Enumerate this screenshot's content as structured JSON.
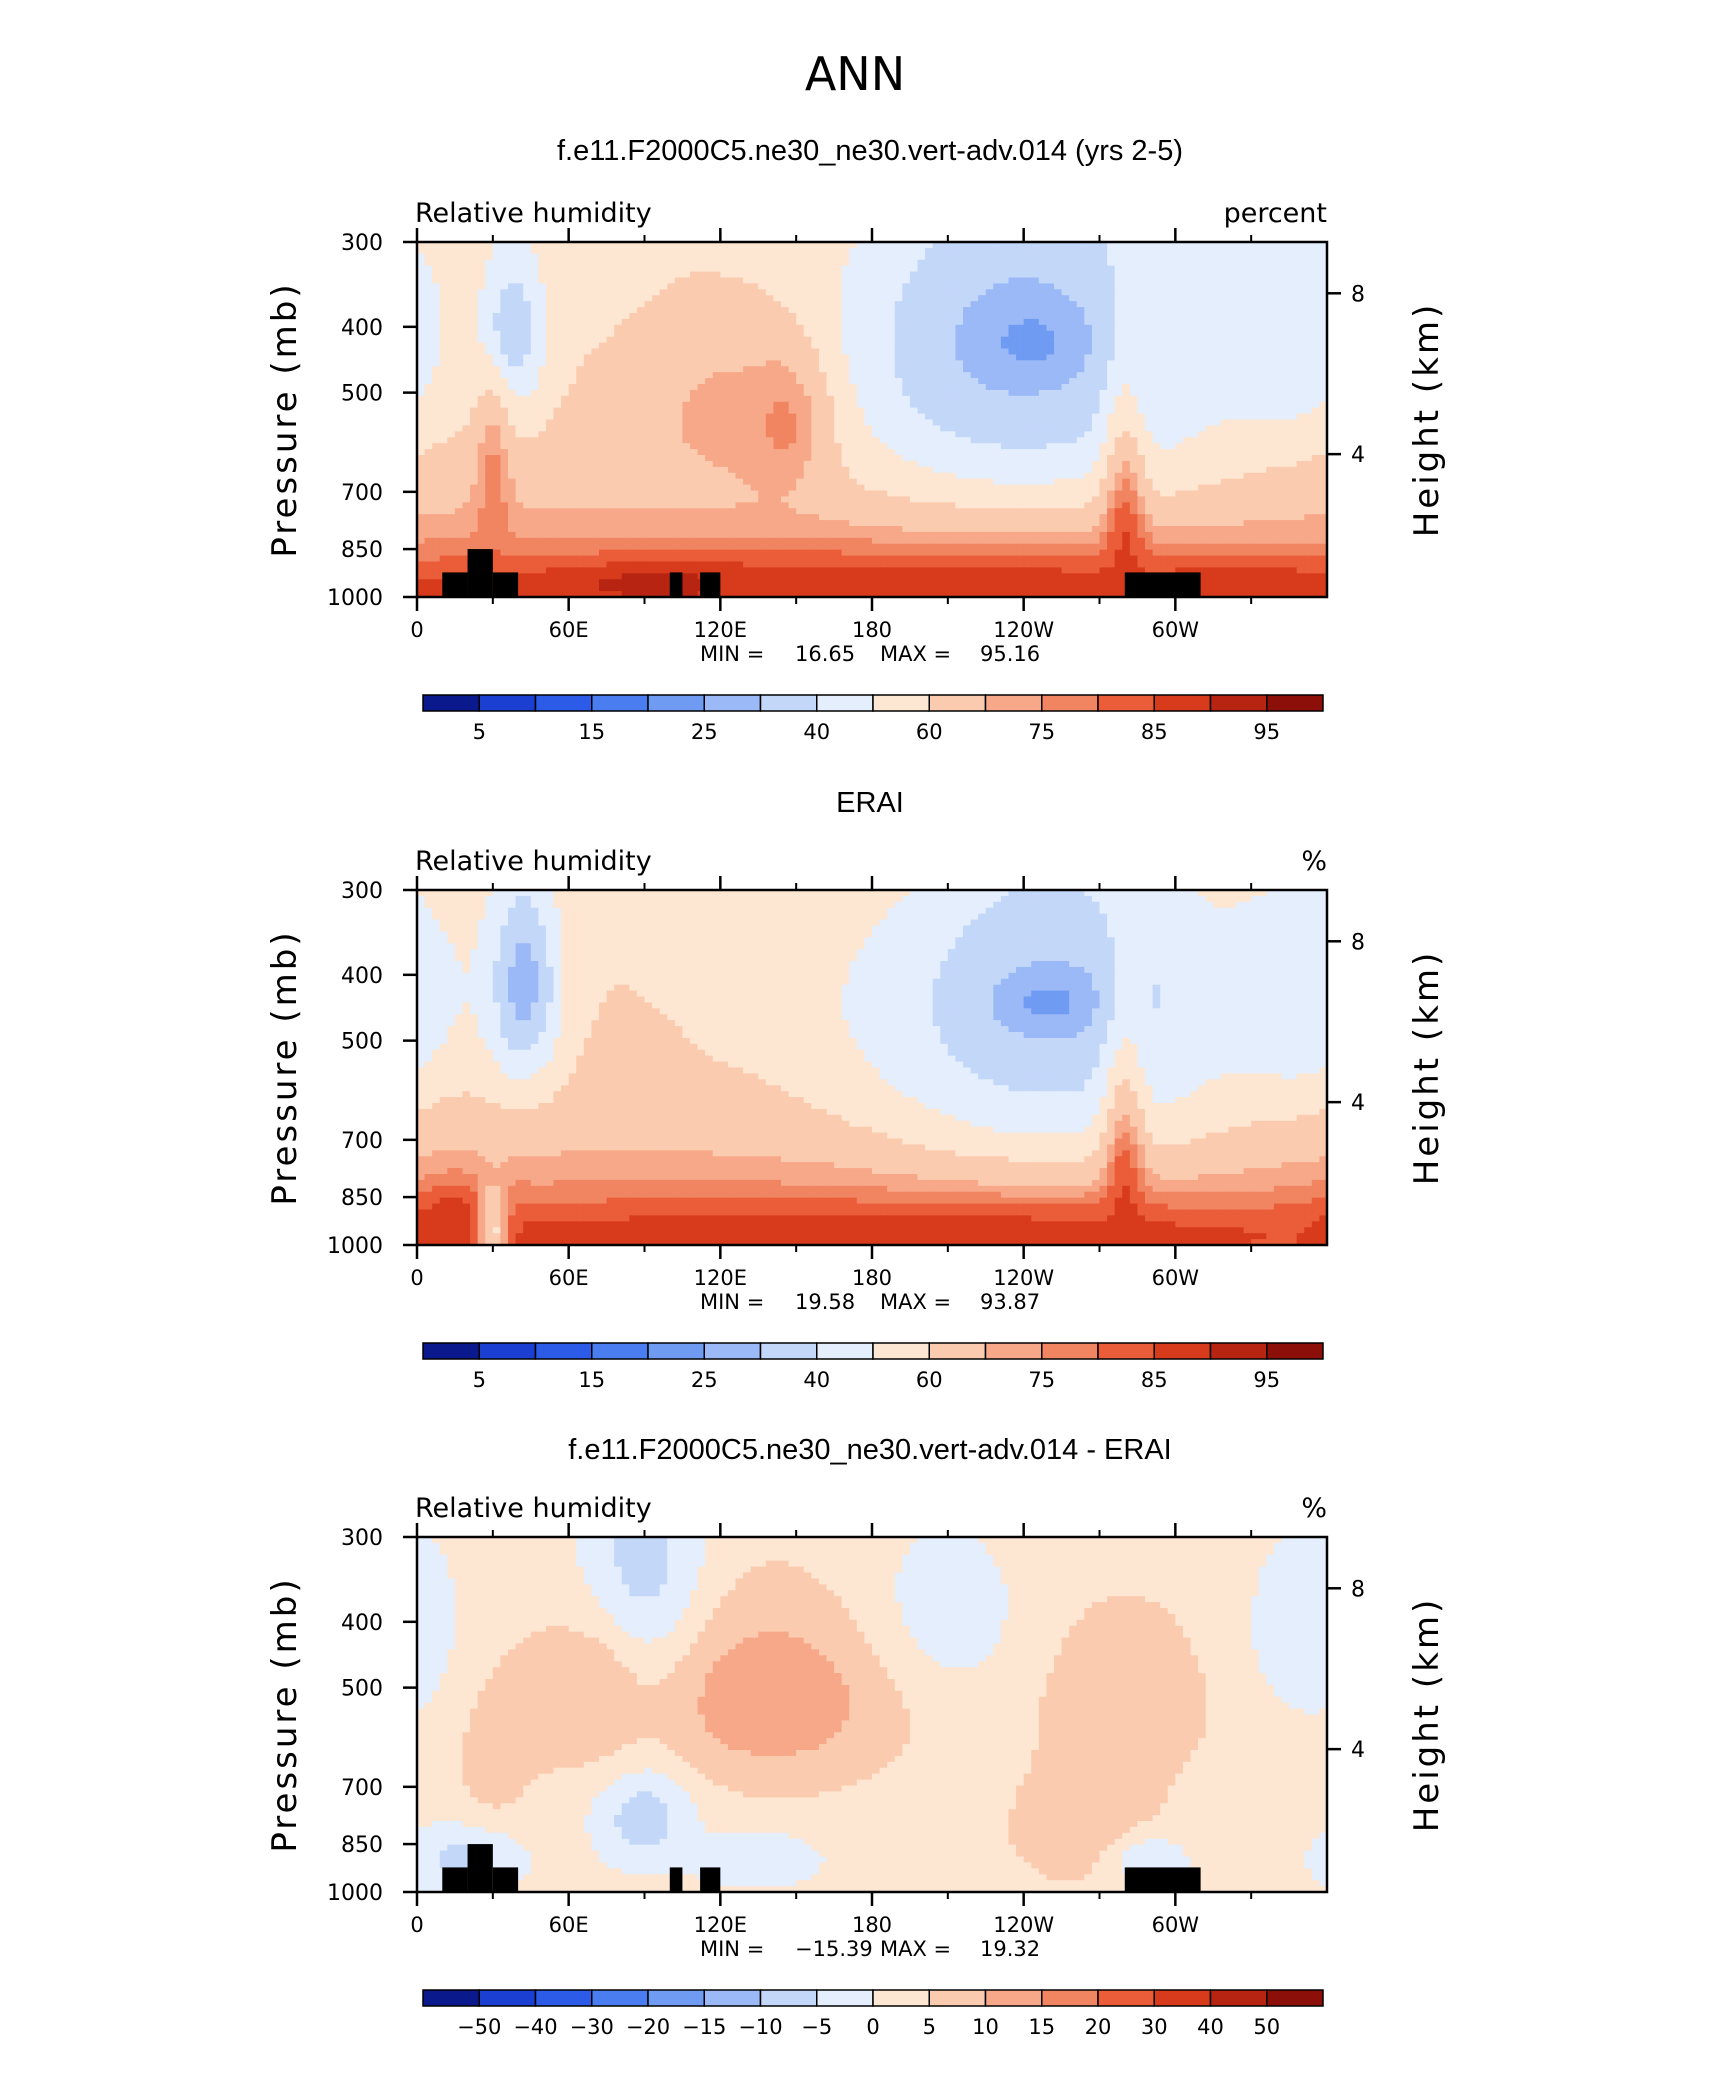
{
  "page_title": "ANN",
  "colors": {
    "frame": "#000000",
    "land_mask": "#000000"
  },
  "chart_data": [
    {
      "type": "heatmap",
      "title": "f.e11.F2000C5.ne30_ne30.vert-adv.014 (yrs 2-5)",
      "left_label": "Relative humidity",
      "right_label": "percent",
      "ylabel": "Pressure (mb)",
      "ylabel_right": "Height (km)",
      "x_ticks": [
        "0",
        "60E",
        "120E",
        "180",
        "120W",
        "60W"
      ],
      "y_ticks": [
        "300",
        "400",
        "500",
        "700",
        "850",
        "1000"
      ],
      "y_ticks_right": [
        "8",
        "4"
      ],
      "stats": {
        "min_label": "MIN =",
        "min": "16.65",
        "max_label": "MAX =",
        "max": "95.16"
      },
      "colorbar_labels": [
        "5",
        "15",
        "25",
        "40",
        "60",
        "75",
        "85",
        "95"
      ],
      "colorbar_colors": [
        "#0a1a8c",
        "#1b3fd1",
        "#2c5be8",
        "#4a7ef0",
        "#6f9bf3",
        "#9ab9f6",
        "#c3d7f9",
        "#e4eefc",
        "#fde6d2",
        "#fbcbb0",
        "#f7a888",
        "#f18461",
        "#ea5d38",
        "#d83b1c",
        "#b82412",
        "#8c0f0a"
      ],
      "zlim": [
        0,
        100
      ],
      "land_blocks": [
        [
          10,
          20,
          920,
          1000
        ],
        [
          20,
          30,
          850,
          1000
        ],
        [
          30,
          40,
          920,
          1000
        ],
        [
          100,
          105,
          920,
          1000
        ],
        [
          112,
          120,
          920,
          1000
        ],
        [
          280,
          310,
          920,
          1000
        ]
      ],
      "blobs": [
        {
          "lon": 245,
          "p": 440,
          "rlon": 55,
          "rp": 200,
          "v": 48
        },
        {
          "lon": 240,
          "p": 430,
          "rlon": 42,
          "rp": 150,
          "v": 36
        },
        {
          "lon": 238,
          "p": 420,
          "rlon": 30,
          "rp": 100,
          "v": 28
        },
        {
          "lon": 243,
          "p": 420,
          "rlon": 15,
          "rp": 40,
          "v": 24
        },
        {
          "lon": 38,
          "p": 410,
          "rlon": 10,
          "rp": 90,
          "v": 38
        },
        {
          "lon": 36,
          "p": 405,
          "rlon": 5,
          "rp": 40,
          "v": 30
        },
        {
          "lon": 345,
          "p": 410,
          "rlon": 18,
          "rp": 100,
          "v": 40
        },
        {
          "lon": 120,
          "p": 540,
          "rlon": 25,
          "rp": 120,
          "v": 72
        },
        {
          "lon": 145,
          "p": 560,
          "rlon": 12,
          "rp": 100,
          "v": 76
        },
        {
          "lon": 30,
          "p": 700,
          "rlon": 5,
          "rp": 150,
          "v": 78
        },
        {
          "lon": 180,
          "p": 960,
          "rlon": 180,
          "rp": 80,
          "v": 88
        },
        {
          "lon": 95,
          "p": 960,
          "rlon": 25,
          "rp": 40,
          "v": 92
        },
        {
          "lon": 330,
          "p": 960,
          "rlon": 20,
          "rp": 40,
          "v": 90
        },
        {
          "lon": 280,
          "p": 900,
          "rlon": 6,
          "rp": 250,
          "v": 86
        }
      ],
      "base": {
        "top": 58,
        "surface": 80,
        "bulge_center": 240,
        "bulge_width": 70,
        "bulge_depth": 12
      }
    },
    {
      "type": "heatmap",
      "title": "ERAI",
      "left_label": "Relative humidity",
      "right_label": "%",
      "ylabel": "Pressure (mb)",
      "ylabel_right": "Height (km)",
      "x_ticks": [
        "0",
        "60E",
        "120E",
        "180",
        "120W",
        "60W"
      ],
      "y_ticks": [
        "300",
        "400",
        "500",
        "700",
        "850",
        "1000"
      ],
      "y_ticks_right": [
        "8",
        "4"
      ],
      "stats": {
        "min_label": "MIN =",
        "min": "19.58",
        "max_label": "MAX =",
        "max": "93.87"
      },
      "colorbar_labels": [
        "5",
        "15",
        "25",
        "40",
        "60",
        "75",
        "85",
        "95"
      ],
      "colorbar_colors": [
        "#0a1a8c",
        "#1b3fd1",
        "#2c5be8",
        "#4a7ef0",
        "#6f9bf3",
        "#9ab9f6",
        "#c3d7f9",
        "#e4eefc",
        "#fde6d2",
        "#fbcbb0",
        "#f7a888",
        "#f18461",
        "#ea5d38",
        "#d83b1c",
        "#b82412",
        "#8c0f0a"
      ],
      "zlim": [
        0,
        100
      ],
      "land_blocks": [],
      "blobs": [
        {
          "lon": 250,
          "p": 450,
          "rlon": 50,
          "rp": 220,
          "v": 45
        },
        {
          "lon": 250,
          "p": 440,
          "rlon": 35,
          "rp": 130,
          "v": 32
        },
        {
          "lon": 250,
          "p": 440,
          "rlon": 18,
          "rp": 40,
          "v": 24
        },
        {
          "lon": 42,
          "p": 420,
          "rlon": 12,
          "rp": 120,
          "v": 35
        },
        {
          "lon": 42,
          "p": 410,
          "rlon": 6,
          "rp": 60,
          "v": 26
        },
        {
          "lon": 350,
          "p": 430,
          "rlon": 20,
          "rp": 110,
          "v": 40
        },
        {
          "lon": 120,
          "p": 430,
          "rlon": 8,
          "rp": 60,
          "v": 58
        },
        {
          "lon": 180,
          "p": 960,
          "rlon": 180,
          "rp": 80,
          "v": 88
        },
        {
          "lon": 15,
          "p": 950,
          "rlon": 12,
          "rp": 90,
          "v": 90
        },
        {
          "lon": 30,
          "p": 950,
          "rlon": 4,
          "rp": 100,
          "v": 58
        },
        {
          "lon": 280,
          "p": 900,
          "rlon": 6,
          "rp": 250,
          "v": 86
        }
      ],
      "base": {
        "top": 60,
        "surface": 80,
        "bulge_center": 240,
        "bulge_width": 70,
        "bulge_depth": 14
      }
    },
    {
      "type": "heatmap",
      "title": "f.e11.F2000C5.ne30_ne30.vert-adv.014 - ERAI",
      "left_label": "Relative humidity",
      "right_label": "%",
      "ylabel": "Pressure (mb)",
      "ylabel_right": "Height (km)",
      "x_ticks": [
        "0",
        "60E",
        "120E",
        "180",
        "120W",
        "60W"
      ],
      "y_ticks": [
        "300",
        "400",
        "500",
        "700",
        "850",
        "1000"
      ],
      "y_ticks_right": [
        "8",
        "4"
      ],
      "stats": {
        "min_label": "MIN =",
        "min": "−15.39",
        "max_label": "MAX =",
        "max": "19.32"
      },
      "colorbar_labels": [
        "−50",
        "−40",
        "−30",
        "−20",
        "−15",
        "−10",
        "−5",
        "0",
        "5",
        "10",
        "15",
        "20",
        "30",
        "40",
        "50"
      ],
      "colorbar_colors": [
        "#0a1a8c",
        "#1b3fd1",
        "#2c5be8",
        "#4a7ef0",
        "#6f9bf3",
        "#9ab9f6",
        "#c3d7f9",
        "#e4eefc",
        "#fde6d2",
        "#fbcbb0",
        "#f7a888",
        "#f18461",
        "#ea5d38",
        "#d83b1c",
        "#b82412",
        "#8c0f0a"
      ],
      "zlim": [
        -55,
        55
      ],
      "land_blocks": [
        [
          10,
          20,
          920,
          1000
        ],
        [
          20,
          30,
          850,
          1000
        ],
        [
          30,
          40,
          920,
          1000
        ],
        [
          100,
          105,
          920,
          1000
        ],
        [
          112,
          120,
          920,
          1000
        ],
        [
          280,
          310,
          920,
          1000
        ]
      ],
      "blobs": [
        {
          "lon": 90,
          "p": 380,
          "rlon": 18,
          "rp": 110,
          "v": -12
        },
        {
          "lon": 90,
          "p": 760,
          "rlon": 14,
          "rp": 110,
          "v": -9
        },
        {
          "lon": 205,
          "p": 400,
          "rlon": 25,
          "rp": 80,
          "v": -4
        },
        {
          "lon": 355,
          "p": 420,
          "rlon": 20,
          "rp": 90,
          "v": -4
        },
        {
          "lon": 140,
          "p": 520,
          "rlon": 35,
          "rp": 120,
          "v": 14
        },
        {
          "lon": 65,
          "p": 520,
          "rlon": 20,
          "rp": 100,
          "v": 10
        },
        {
          "lon": 280,
          "p": 520,
          "rlon": 25,
          "rp": 120,
          "v": 9
        },
        {
          "lon": 265,
          "p": 800,
          "rlon": 20,
          "rp": 110,
          "v": 10
        },
        {
          "lon": 30,
          "p": 700,
          "rlon": 12,
          "rp": 200,
          "v": 7
        },
        {
          "lon": 20,
          "p": 900,
          "rlon": 18,
          "rp": 80,
          "v": -7
        },
        {
          "lon": 135,
          "p": 900,
          "rlon": 18,
          "rp": 60,
          "v": -5
        },
        {
          "lon": 290,
          "p": 900,
          "rlon": 12,
          "rp": 60,
          "v": -4
        }
      ],
      "base": {
        "top": 2,
        "surface": 3,
        "bulge_center": 240,
        "bulge_width": 70,
        "bulge_depth": 0
      }
    }
  ]
}
